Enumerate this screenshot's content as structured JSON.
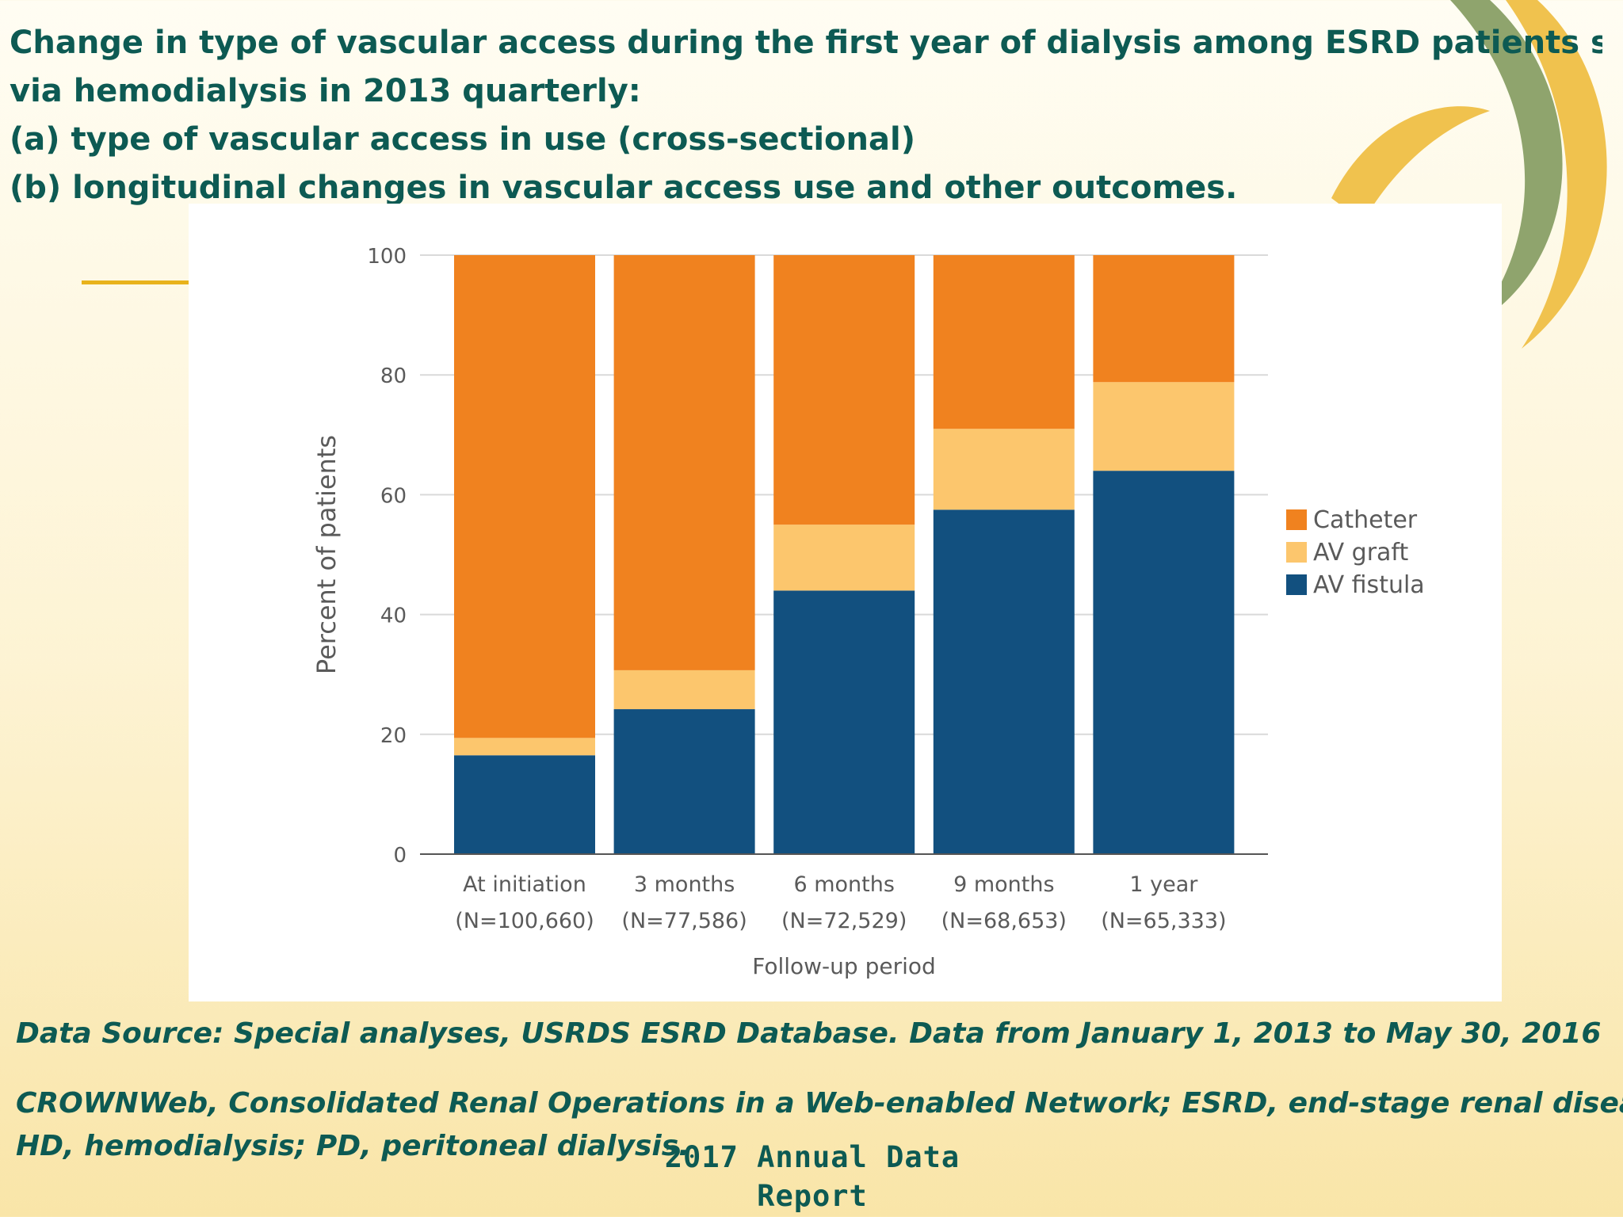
{
  "slide": {
    "title_lines": [
      "Change in type of vascular access during the first year of dialysis among ESRD patients starting",
      "via hemodialysis in 2013 quarterly:",
      "(a) type of vascular access in use (cross-sectional)",
      "(b) longitudinal changes in vascular access use and other outcomes."
    ],
    "source": "Data Source: Special analyses, USRDS ESRD Database. Data from January 1, 2013 to May 30, 2016",
    "abbreviation_lines": [
      "CROWNWeb, Consolidated Renal Operations in a Web-enabled Network; ESRD, end-stage renal disease;",
      "HD, hemodialysis; PD, peritoneal dialysis."
    ],
    "report_lines": [
      "2017 Annual Data",
      "Report"
    ],
    "colors": {
      "title_text": "#0d5a53",
      "background": "#fdf3d3",
      "deco_green": "#8fa46d",
      "deco_gold": "#f0c24e"
    }
  },
  "chart_data": {
    "type": "bar",
    "stacked": true,
    "title": "",
    "xlabel": "Follow-up period",
    "ylabel": "Percent of patients",
    "ylim": [
      0,
      100
    ],
    "yticks": [
      0,
      20,
      40,
      60,
      80,
      100
    ],
    "grid": true,
    "legend_position": "right",
    "categories": [
      [
        "At initiation",
        "(N=100,660)"
      ],
      [
        "3 months",
        "(N=77,586)"
      ],
      [
        "6 months",
        "(N=72,529)"
      ],
      [
        "9 months",
        "(N=68,653)"
      ],
      [
        "1 year",
        "(N=65,333)"
      ]
    ],
    "series": [
      {
        "name": "AV fistula",
        "color": "#12507f",
        "values": [
          16.5,
          24.2,
          44.0,
          57.5,
          64.0
        ]
      },
      {
        "name": "AV graft",
        "color": "#fcc66d",
        "values": [
          2.9,
          6.5,
          11.0,
          13.5,
          14.8
        ]
      },
      {
        "name": "Catheter",
        "color": "#f0821f",
        "values": [
          80.6,
          69.3,
          45.0,
          29.0,
          21.2
        ]
      }
    ],
    "legend_order": [
      "Catheter",
      "AV graft",
      "AV fistula"
    ]
  }
}
